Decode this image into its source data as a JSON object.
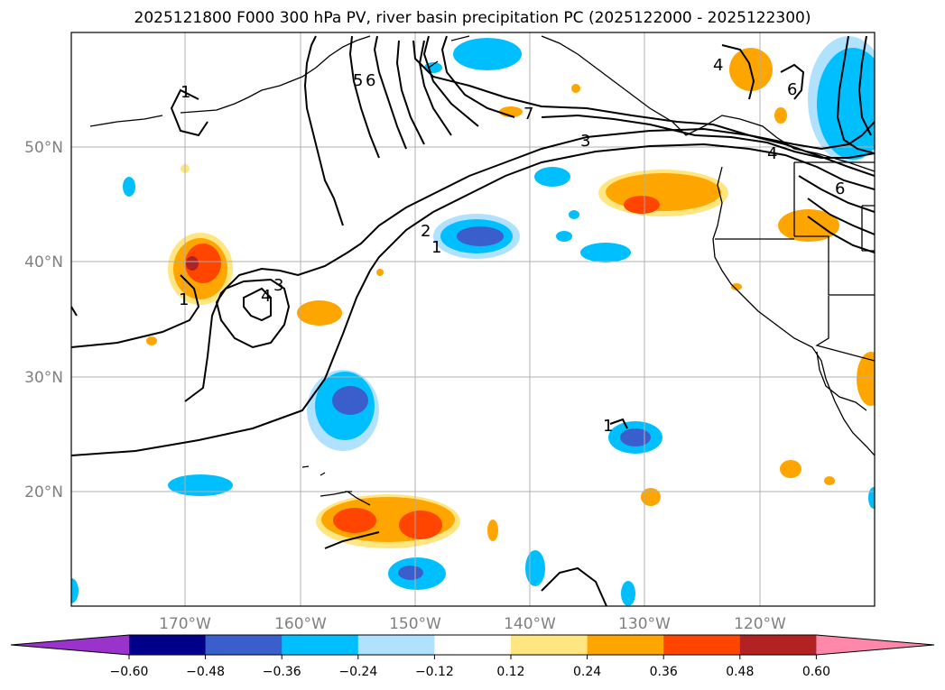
{
  "title": "2025121800 F000 300 hPa PV, river basin precipitation PC (2025122000 - 2025122300)",
  "map": {
    "projection": "PlateCarree",
    "lon_range": [
      -180,
      -110
    ],
    "lat_range": [
      10,
      60
    ],
    "gridlines": true,
    "lat_ticks": [
      {
        "lat": 50,
        "label": "50°N"
      },
      {
        "lat": 40,
        "label": "40°N"
      },
      {
        "lat": 30,
        "label": "30°N"
      },
      {
        "lat": 20,
        "label": "20°N"
      }
    ],
    "lon_ticks": [
      {
        "lon": -170,
        "label": "170°W"
      },
      {
        "lon": -160,
        "label": "160°W"
      },
      {
        "lon": -150,
        "label": "150°W"
      },
      {
        "lon": -140,
        "label": "140°W"
      },
      {
        "lon": -130,
        "label": "130°W"
      },
      {
        "lon": -120,
        "label": "120°W"
      }
    ]
  },
  "colorbar": {
    "orientation": "horizontal",
    "extend": "both",
    "boundaries": [
      -0.6,
      -0.48,
      -0.36,
      -0.24,
      -0.12,
      0.12,
      0.24,
      0.36,
      0.48,
      0.6
    ],
    "tick_labels": [
      "−0.60",
      "−0.48",
      "−0.36",
      "−0.24",
      "−0.12",
      "0.12",
      "0.24",
      "0.36",
      "0.48",
      "0.60"
    ],
    "colors": [
      "#9933cc",
      "#00008b",
      "#3a5fcd",
      "#00bfff",
      "#b0e2ff",
      "#ffffff",
      "#ffe680",
      "#ffa500",
      "#ff4500",
      "#b22222",
      "#ff88aa"
    ]
  },
  "contour_labels": [
    "1",
    "2",
    "3",
    "4",
    "5",
    "6",
    "7"
  ]
}
